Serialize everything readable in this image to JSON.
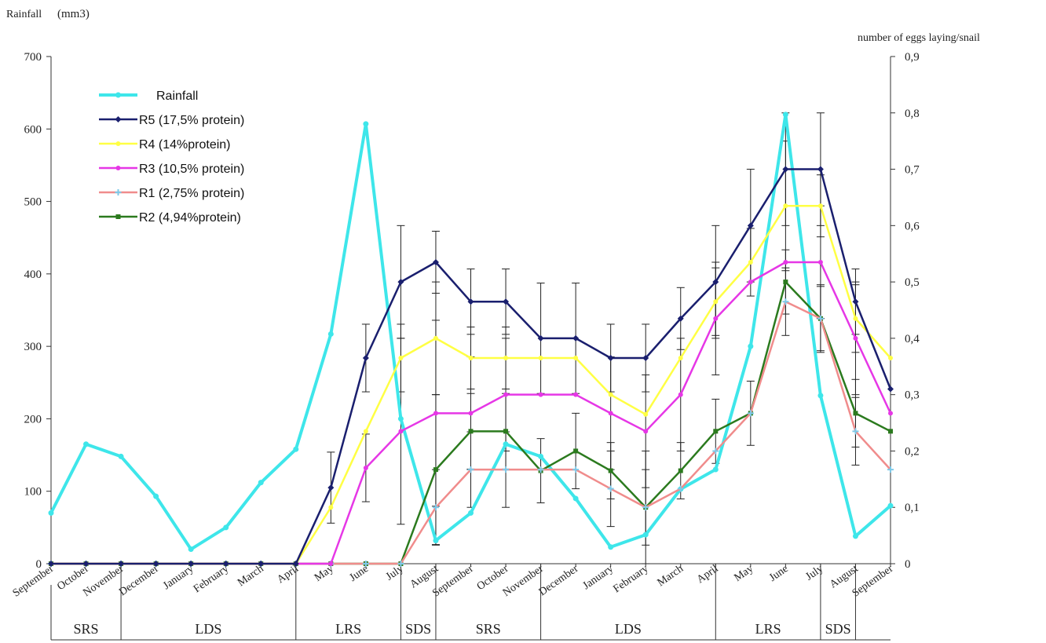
{
  "chart_data": {
    "type": "line",
    "left_axis_label": "Rainfall",
    "left_axis_unit": "(mm3)",
    "right_axis_label": "number of eggs laying/snail",
    "x_labels": [
      "September",
      "October",
      "November",
      "December",
      "January",
      "February",
      "March",
      "April",
      "May",
      "June",
      "July",
      "August",
      "September",
      "October",
      "November",
      "December",
      "January",
      "February",
      "March",
      "April",
      "May",
      "June",
      "July",
      "August",
      "September"
    ],
    "left_ticks": [
      "0",
      "100",
      "200",
      "300",
      "400",
      "500",
      "600",
      "700"
    ],
    "left_range": [
      0,
      700
    ],
    "right_ticks": [
      "0",
      "0,1",
      "0,2",
      "0,3",
      "0,4",
      "0,5",
      "0,6",
      "0,7",
      "0,8",
      "0,9"
    ],
    "right_range": [
      0,
      0.9
    ],
    "seasons": [
      {
        "label": "SRS",
        "from": 0,
        "to": 2
      },
      {
        "label": "LDS",
        "from": 2,
        "to": 7
      },
      {
        "label": "LRS",
        "from": 7,
        "to": 10
      },
      {
        "label": "SDS",
        "from": 10,
        "to": 11
      },
      {
        "label": "SRS",
        "from": 11,
        "to": 14
      },
      {
        "label": "LDS",
        "from": 14,
        "to": 19
      },
      {
        "label": "LRS",
        "from": 19,
        "to": 22
      },
      {
        "label": "SDS",
        "from": 22,
        "to": 23
      }
    ],
    "rainfall": {
      "name": "Rainfall",
      "color": "#3ee6ea",
      "axis": "left",
      "values": [
        70,
        165,
        148,
        93,
        20,
        50,
        112,
        158,
        317,
        607,
        200,
        32,
        70,
        165,
        148,
        90,
        23,
        40,
        103,
        130,
        300,
        620,
        232,
        38,
        80
      ]
    },
    "series": [
      {
        "name": "R5 (17,5% protein)",
        "color": "#1a1f6e",
        "marker": "diamond",
        "axis": "right",
        "values": [
          0,
          0,
          0,
          0,
          0,
          0,
          0,
          0,
          0.135,
          0.365,
          0.5,
          0.535,
          0.465,
          0.465,
          0.4,
          0.4,
          0.365,
          0.365,
          0.435,
          0.5,
          0.6,
          0.7,
          0.7,
          0.465,
          0.31
        ],
        "errors": [
          0,
          0,
          0,
          0,
          0,
          0,
          0,
          0,
          0.063,
          0.06,
          0.1,
          0.055,
          0.058,
          0.058,
          0.098,
          0.098,
          0.06,
          0.06,
          0.055,
          0.1,
          0.1,
          0.1,
          0.1,
          0.058,
          0
        ]
      },
      {
        "name": "R4 (14%protein)",
        "color": "#ffff44",
        "marker": "circle",
        "axis": "right",
        "values": [
          0,
          0,
          0,
          0,
          0,
          0,
          0,
          0,
          0.1,
          0.235,
          0.365,
          0.4,
          0.365,
          0.365,
          0.365,
          0.365,
          0.3,
          0.265,
          0.365,
          0.465,
          0.535,
          0.635,
          0.635,
          0.435,
          0.365
        ],
        "errors": [
          0,
          0,
          0,
          0,
          0,
          0,
          0,
          0,
          0,
          0,
          0.06,
          0.1,
          0.055,
          0.055,
          0,
          0,
          0,
          0,
          0,
          0.06,
          0.06,
          0.115,
          0.055,
          0.06,
          0
        ]
      },
      {
        "name": "R3 (10,5% protein)",
        "color": "#e637e6",
        "marker": "circle",
        "axis": "right",
        "values": [
          0,
          0,
          0,
          0,
          0,
          0,
          0,
          0,
          0,
          0.17,
          0.235,
          0.267,
          0.267,
          0.3,
          0.3,
          0.3,
          0.267,
          0.235,
          0.3,
          0.435,
          0.5,
          0.535,
          0.535,
          0.4,
          0.267
        ],
        "errors": [
          0,
          0,
          0,
          0,
          0,
          0,
          0,
          0,
          0,
          0.06,
          0.165,
          0.165,
          0.1,
          0.1,
          0,
          0,
          0.1,
          0.1,
          0.1,
          0.1,
          0,
          0,
          0.1,
          0.1,
          0
        ]
      },
      {
        "name": "R1 (2,75% protein)",
        "color": "#f08c8c",
        "marker": "cross",
        "axis": "right",
        "values": [
          0,
          0,
          0,
          0,
          0,
          0,
          0,
          0,
          0,
          0,
          0,
          0.1,
          0.167,
          0.167,
          0.167,
          0.167,
          0.133,
          0.1,
          0.133,
          0.2,
          0.267,
          0.465,
          0.435,
          0.235,
          0.167
        ],
        "errors": [
          0,
          0,
          0,
          0,
          0,
          0,
          0,
          0,
          0,
          0,
          0,
          0.067,
          0.067,
          0.067,
          0,
          0,
          0.067,
          0.067,
          0,
          0,
          0,
          0.06,
          0.06,
          0.06,
          0
        ]
      },
      {
        "name": "R2 (4,94%protein)",
        "color": "#2b7a1e",
        "marker": "square",
        "axis": "right",
        "values": [
          0,
          0,
          0,
          0,
          0,
          0,
          0,
          0,
          0,
          0,
          0,
          0.167,
          0.235,
          0.235,
          0.165,
          0.2,
          0.165,
          0.1,
          0.165,
          0.235,
          0.267,
          0.5,
          0.435,
          0.267,
          0.235
        ],
        "errors": [
          0,
          0,
          0,
          0,
          0,
          0,
          0,
          0,
          0,
          0,
          0,
          0.133,
          0.067,
          0.067,
          0.057,
          0.067,
          0.05,
          0.1,
          0.05,
          0.057,
          0.057,
          0.057,
          0.057,
          0.06,
          0
        ]
      }
    ],
    "legend_order": [
      "rainfall",
      0,
      1,
      2,
      3,
      4
    ]
  }
}
